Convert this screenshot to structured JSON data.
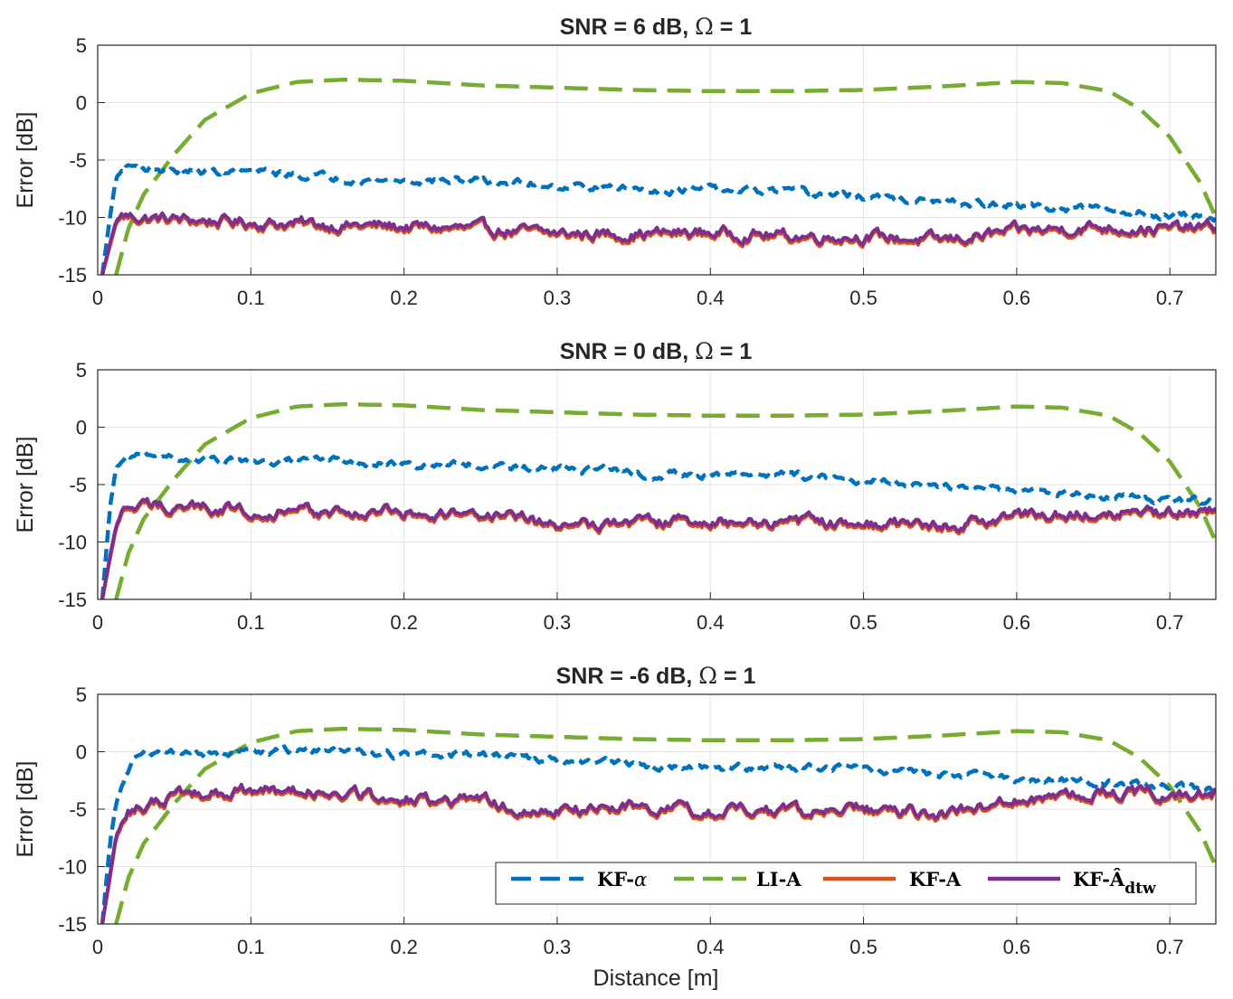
{
  "chart_data": {
    "type": "line",
    "x_label": "Distance [m]",
    "y_label": "Error [dB]",
    "xlim": [
      0,
      0.73
    ],
    "ylim": [
      -15,
      5
    ],
    "x_ticks": [
      "0",
      "0.1",
      "0.2",
      "0.3",
      "0.4",
      "0.5",
      "0.6",
      "0.7"
    ],
    "x_tick_values": [
      0,
      0.1,
      0.2,
      0.3,
      0.4,
      0.5,
      0.6,
      0.7
    ],
    "y_ticks": [
      "5",
      "0",
      "-5",
      "-10",
      "-15"
    ],
    "y_tick_values": [
      5,
      0,
      -5,
      -10,
      -15
    ],
    "grid": true,
    "legend": {
      "placement": "bottom-right of bottom panel",
      "entries": [
        {
          "label_base": "KF-",
          "label_symbol": "α",
          "series": "KF-alpha"
        },
        {
          "label_base": "LI-A",
          "label_symbol": "",
          "series": "LI-A"
        },
        {
          "label_base": "KF-A",
          "label_symbol": "",
          "series": "KF-A"
        },
        {
          "label_base": "KF-Â",
          "label_symbol": "dtw",
          "series": "KF-Adtw"
        }
      ]
    },
    "series_styles": [
      {
        "name": "KF-alpha",
        "color": "#0072BD",
        "dash": "dashed"
      },
      {
        "name": "LI-A",
        "color": "#77AC30",
        "dash": "dashed"
      },
      {
        "name": "KF-A",
        "color": "#D95319",
        "dash": "solid"
      },
      {
        "name": "KF-Adtw",
        "color": "#7E2F8E",
        "dash": "solid"
      }
    ],
    "panels": [
      {
        "title_prefix": "SNR = 6 dB, ",
        "title_symbol": "Ω",
        "title_suffix": " = 1",
        "series": [
          {
            "name": "KF-alpha",
            "x": [
              0.003,
              0.008,
              0.012,
              0.02,
              0.04,
              0.06,
              0.1,
              0.15,
              0.2,
              0.25,
              0.3,
              0.35,
              0.4,
              0.45,
              0.5,
              0.55,
              0.6,
              0.65,
              0.7,
              0.73
            ],
            "values": [
              -15,
              -10,
              -6.5,
              -5.5,
              -5.8,
              -6.0,
              -6.0,
              -6.5,
              -6.8,
              -6.8,
              -7.2,
              -7.5,
              -7.6,
              -7.8,
              -8.2,
              -8.7,
              -9.0,
              -9.3,
              -9.8,
              -10.0
            ]
          },
          {
            "name": "LI-A",
            "x": [
              0.012,
              0.02,
              0.03,
              0.05,
              0.07,
              0.1,
              0.13,
              0.16,
              0.2,
              0.25,
              0.3,
              0.35,
              0.4,
              0.45,
              0.5,
              0.55,
              0.6,
              0.63,
              0.66,
              0.68,
              0.7,
              0.72,
              0.73
            ],
            "values": [
              -15,
              -11,
              -8,
              -4.5,
              -1.5,
              0.8,
              1.8,
              2.0,
              1.9,
              1.5,
              1.3,
              1.1,
              1.0,
              1.0,
              1.1,
              1.4,
              1.8,
              1.7,
              1.0,
              -0.5,
              -3.0,
              -7.0,
              -10.0
            ]
          },
          {
            "name": "KF-A",
            "x": [
              0.003,
              0.008,
              0.012,
              0.016,
              0.03,
              0.06,
              0.1,
              0.15,
              0.2,
              0.25,
              0.3,
              0.35,
              0.4,
              0.45,
              0.5,
              0.55,
              0.6,
              0.65,
              0.7,
              0.73
            ],
            "values": [
              -15,
              -12.5,
              -10.5,
              -10.0,
              -10.2,
              -10.4,
              -10.6,
              -10.8,
              -11.0,
              -11.2,
              -11.6,
              -11.6,
              -11.5,
              -11.8,
              -11.8,
              -12.2,
              -11.4,
              -11.0,
              -11.2,
              -11.0
            ]
          },
          {
            "name": "KF-Adtw",
            "x": [
              0.003,
              0.008,
              0.012,
              0.016,
              0.03,
              0.06,
              0.1,
              0.15,
              0.2,
              0.25,
              0.3,
              0.35,
              0.4,
              0.45,
              0.5,
              0.55,
              0.6,
              0.65,
              0.7,
              0.73
            ],
            "values": [
              -15,
              -12.3,
              -10.3,
              -9.8,
              -10.0,
              -10.2,
              -10.4,
              -10.6,
              -10.8,
              -11.0,
              -11.4,
              -11.4,
              -11.3,
              -11.6,
              -11.6,
              -12.0,
              -11.2,
              -10.8,
              -11.0,
              -10.8
            ]
          }
        ]
      },
      {
        "title_prefix": "SNR = 0 dB, ",
        "title_symbol": "Ω",
        "title_suffix": " = 1",
        "series": [
          {
            "name": "KF-alpha",
            "x": [
              0.003,
              0.008,
              0.012,
              0.02,
              0.04,
              0.06,
              0.1,
              0.15,
              0.2,
              0.25,
              0.3,
              0.35,
              0.4,
              0.45,
              0.5,
              0.55,
              0.6,
              0.65,
              0.7,
              0.73
            ],
            "values": [
              -15,
              -7,
              -3.5,
              -2.7,
              -2.5,
              -2.9,
              -2.8,
              -3.0,
              -3.2,
              -3.3,
              -3.6,
              -4.0,
              -4.1,
              -4.2,
              -4.6,
              -5.1,
              -5.6,
              -5.9,
              -6.3,
              -6.5
            ]
          },
          {
            "name": "LI-A",
            "x": [
              0.012,
              0.02,
              0.03,
              0.05,
              0.07,
              0.1,
              0.13,
              0.16,
              0.2,
              0.25,
              0.3,
              0.35,
              0.4,
              0.45,
              0.5,
              0.55,
              0.6,
              0.63,
              0.66,
              0.68,
              0.7,
              0.72,
              0.73
            ],
            "values": [
              -15,
              -11,
              -8,
              -4.5,
              -1.5,
              0.8,
              1.8,
              2.0,
              1.9,
              1.5,
              1.3,
              1.1,
              1.0,
              1.0,
              1.1,
              1.4,
              1.8,
              1.7,
              1.0,
              -0.5,
              -3.0,
              -7.0,
              -10.0
            ]
          },
          {
            "name": "KF-A",
            "x": [
              0.003,
              0.008,
              0.012,
              0.016,
              0.03,
              0.06,
              0.1,
              0.15,
              0.2,
              0.25,
              0.3,
              0.35,
              0.4,
              0.45,
              0.5,
              0.55,
              0.6,
              0.65,
              0.7,
              0.73
            ],
            "values": [
              -15,
              -11.5,
              -8.8,
              -7.6,
              -7.1,
              -7.1,
              -7.4,
              -7.6,
              -7.6,
              -7.7,
              -8.7,
              -8.4,
              -8.4,
              -8.5,
              -8.5,
              -8.8,
              -8.0,
              -7.4,
              -7.8,
              -7.4
            ]
          },
          {
            "name": "KF-Adtw",
            "x": [
              0.003,
              0.008,
              0.012,
              0.016,
              0.03,
              0.06,
              0.1,
              0.15,
              0.2,
              0.25,
              0.3,
              0.35,
              0.4,
              0.45,
              0.5,
              0.55,
              0.6,
              0.65,
              0.7,
              0.73
            ],
            "values": [
              -15,
              -11.3,
              -8.6,
              -7.4,
              -6.9,
              -6.9,
              -7.2,
              -7.4,
              -7.4,
              -7.5,
              -8.5,
              -8.2,
              -8.2,
              -8.3,
              -8.3,
              -8.6,
              -7.8,
              -7.2,
              -7.6,
              -7.2
            ]
          }
        ]
      },
      {
        "title_prefix": "SNR = -6 dB, ",
        "title_symbol": "Ω",
        "title_suffix": " = 1",
        "series": [
          {
            "name": "KF-alpha",
            "x": [
              0.003,
              0.008,
              0.012,
              0.02,
              0.03,
              0.04,
              0.06,
              0.1,
              0.15,
              0.2,
              0.25,
              0.3,
              0.35,
              0.4,
              0.45,
              0.5,
              0.55,
              0.6,
              0.65,
              0.7,
              0.73
            ],
            "values": [
              -15,
              -8,
              -4.5,
              -1.5,
              0.4,
              0.0,
              -0.2,
              0.0,
              0.1,
              -0.3,
              -0.2,
              -0.7,
              -1.2,
              -1.5,
              -1.3,
              -1.5,
              -2.0,
              -2.4,
              -2.6,
              -3.0,
              -3.2
            ]
          },
          {
            "name": "LI-A",
            "x": [
              0.012,
              0.02,
              0.03,
              0.05,
              0.07,
              0.1,
              0.13,
              0.16,
              0.2,
              0.25,
              0.3,
              0.35,
              0.4,
              0.45,
              0.5,
              0.55,
              0.6,
              0.63,
              0.66,
              0.68,
              0.7,
              0.72,
              0.73
            ],
            "values": [
              -15,
              -11,
              -8,
              -4.5,
              -1.5,
              0.8,
              1.8,
              2.0,
              1.9,
              1.5,
              1.3,
              1.1,
              1.0,
              1.0,
              1.1,
              1.4,
              1.8,
              1.7,
              1.0,
              -0.5,
              -3.0,
              -7.0,
              -10.0
            ]
          },
          {
            "name": "KF-A",
            "x": [
              0.003,
              0.008,
              0.012,
              0.02,
              0.03,
              0.05,
              0.08,
              0.1,
              0.15,
              0.2,
              0.25,
              0.3,
              0.35,
              0.4,
              0.45,
              0.5,
              0.55,
              0.6,
              0.65,
              0.7,
              0.73
            ],
            "values": [
              -15,
              -11,
              -7.5,
              -5.5,
              -5.0,
              -4.0,
              -3.7,
              -3.5,
              -3.7,
              -4.3,
              -4.4,
              -5.4,
              -4.9,
              -5.4,
              -5.4,
              -5.1,
              -5.7,
              -4.4,
              -3.7,
              -3.9,
              -3.7
            ]
          },
          {
            "name": "KF-Adtw",
            "x": [
              0.003,
              0.008,
              0.012,
              0.02,
              0.03,
              0.05,
              0.08,
              0.1,
              0.15,
              0.2,
              0.25,
              0.3,
              0.35,
              0.4,
              0.45,
              0.5,
              0.55,
              0.6,
              0.65,
              0.7,
              0.73
            ],
            "values": [
              -15,
              -10.8,
              -7.3,
              -5.3,
              -4.8,
              -3.8,
              -3.5,
              -3.3,
              -3.5,
              -4.1,
              -4.2,
              -5.2,
              -4.7,
              -5.2,
              -5.2,
              -4.9,
              -5.5,
              -4.2,
              -3.5,
              -3.7,
              -3.5
            ]
          }
        ]
      }
    ]
  }
}
